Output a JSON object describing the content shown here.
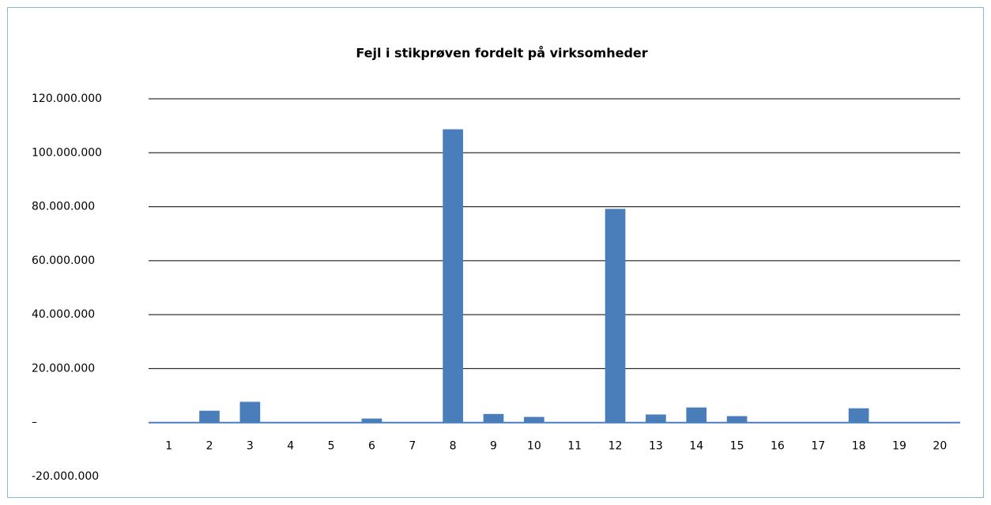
{
  "chart_data": {
    "type": "bar",
    "title": "Fejl i stikprøven fordelt på virksomheder",
    "categories": [
      "1",
      "2",
      "3",
      "4",
      "5",
      "6",
      "7",
      "8",
      "9",
      "10",
      "11",
      "12",
      "13",
      "14",
      "15",
      "16",
      "17",
      "18",
      "19",
      "20"
    ],
    "values": [
      0,
      4400000,
      7700000,
      0,
      0,
      1500000,
      0,
      108700000,
      3200000,
      2100000,
      0,
      79200000,
      3000000,
      5600000,
      2400000,
      0,
      0,
      5300000,
      0,
      0
    ],
    "color": "#4a7ebb",
    "ylim": [
      -20000000,
      120000000
    ],
    "yticks": [
      {
        "value": -20000000,
        "label": "-20.000.000"
      },
      {
        "value": 0,
        "label": "–"
      },
      {
        "value": 20000000,
        "label": "20.000.000"
      },
      {
        "value": 40000000,
        "label": "40.000.000"
      },
      {
        "value": 60000000,
        "label": "60.000.000"
      },
      {
        "value": 80000000,
        "label": "80.000.000"
      },
      {
        "value": 100000000,
        "label": "100.000.000"
      },
      {
        "value": 120000000,
        "label": "120.000.000"
      }
    ],
    "grid": true
  }
}
